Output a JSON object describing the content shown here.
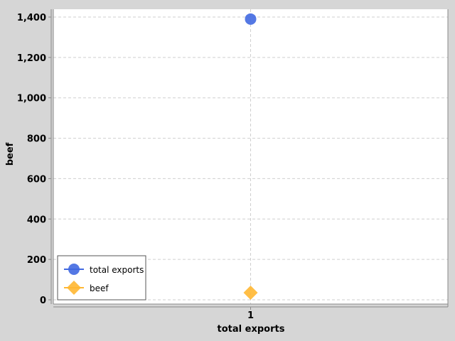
{
  "chart_data": {
    "type": "scatter",
    "title": "",
    "xlabel": "total exports",
    "ylabel": "beef",
    "categories": [
      "1"
    ],
    "ylim": [
      0,
      1400
    ],
    "yticks": [
      0,
      200,
      400,
      600,
      800,
      1000,
      1200,
      1400
    ],
    "ytick_labels": [
      "0",
      "200",
      "400",
      "600",
      "800",
      "1,000",
      "1,200",
      "1,400"
    ],
    "grid": true,
    "legend_position": "bottom-left",
    "series": [
      {
        "name": "total exports",
        "marker": "circle",
        "color": "#4169e1",
        "values": [
          1390
        ]
      },
      {
        "name": "beef",
        "marker": "diamond",
        "color": "#ffb732",
        "values": [
          35
        ]
      }
    ]
  }
}
